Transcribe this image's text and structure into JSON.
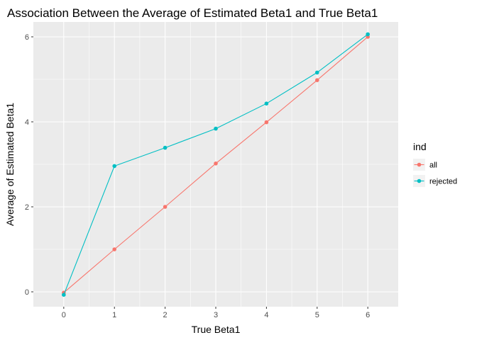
{
  "chart_data": {
    "type": "line",
    "title": "Association Between the Average of Estimated Beta1 and True Beta1",
    "xlabel": "True Beta1",
    "ylabel": "Average of Estimated Beta1",
    "x": [
      0,
      1,
      2,
      3,
      4,
      5,
      6
    ],
    "x_ticks": [
      "0",
      "1",
      "2",
      "3",
      "4",
      "5",
      "6"
    ],
    "y_ticks": [
      "0",
      "2",
      "4",
      "6"
    ],
    "xlim": [
      -0.6,
      6.6
    ],
    "ylim": [
      -0.35,
      6.35
    ],
    "grid": true,
    "legend": {
      "title": "ind",
      "position": "right"
    },
    "series": [
      {
        "name": "all",
        "color": "#f8766d",
        "values": [
          -0.02,
          1.0,
          2.0,
          3.02,
          3.99,
          4.98,
          6.0
        ]
      },
      {
        "name": "rejected",
        "color": "#00bfc4",
        "values": [
          -0.07,
          2.96,
          3.39,
          3.84,
          4.43,
          5.16,
          6.06
        ]
      }
    ]
  }
}
